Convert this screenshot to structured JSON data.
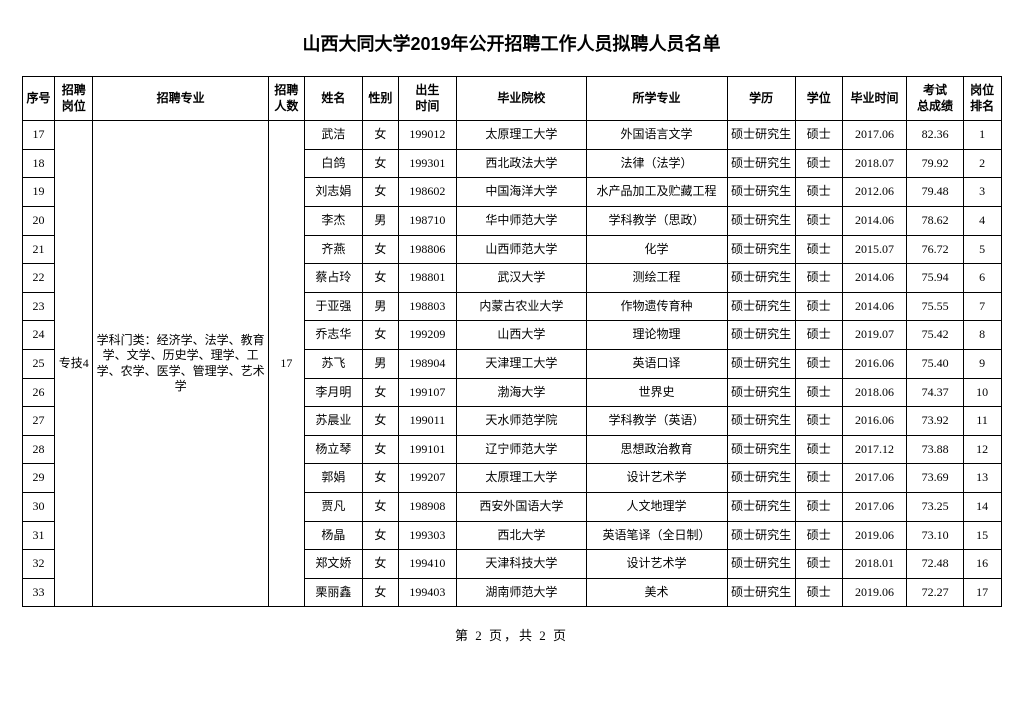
{
  "title": "山西大同大学2019年公开招聘工作人员拟聘人员名单",
  "footer": "第 2 页，共 2 页",
  "headers": {
    "seq": "序号",
    "position": "招聘\n岗位",
    "major": "招聘专业",
    "count": "招聘\n人数",
    "name": "姓名",
    "gender": "性别",
    "birth": "出生\n时间",
    "school": "毕业院校",
    "study": "所学专业",
    "edu": "学历",
    "degree": "学位",
    "gradtime": "毕业时间",
    "score": "考试\n总成绩",
    "rank": "岗位\n排名"
  },
  "position": "专技4",
  "majorDesc": "学科门类：经济学、法学、教育学、文学、历史学、理学、工学、农学、医学、管理学、艺术学",
  "count": "17",
  "rows": [
    {
      "seq": "17",
      "name": "武洁",
      "gender": "女",
      "birth": "199012",
      "school": "太原理工大学",
      "study": "外国语言文学",
      "edu": "硕士研究生",
      "degree": "硕士",
      "gradtime": "2017.06",
      "score": "82.36",
      "rank": "1"
    },
    {
      "seq": "18",
      "name": "白鸽",
      "gender": "女",
      "birth": "199301",
      "school": "西北政法大学",
      "study": "法律（法学）",
      "edu": "硕士研究生",
      "degree": "硕士",
      "gradtime": "2018.07",
      "score": "79.92",
      "rank": "2"
    },
    {
      "seq": "19",
      "name": "刘志娟",
      "gender": "女",
      "birth": "198602",
      "school": "中国海洋大学",
      "study": "水产品加工及贮藏工程",
      "edu": "硕士研究生",
      "degree": "硕士",
      "gradtime": "2012.06",
      "score": "79.48",
      "rank": "3"
    },
    {
      "seq": "20",
      "name": "李杰",
      "gender": "男",
      "birth": "198710",
      "school": "华中师范大学",
      "study": "学科教学（思政）",
      "edu": "硕士研究生",
      "degree": "硕士",
      "gradtime": "2014.06",
      "score": "78.62",
      "rank": "4"
    },
    {
      "seq": "21",
      "name": "齐燕",
      "gender": "女",
      "birth": "198806",
      "school": "山西师范大学",
      "study": "化学",
      "edu": "硕士研究生",
      "degree": "硕士",
      "gradtime": "2015.07",
      "score": "76.72",
      "rank": "5"
    },
    {
      "seq": "22",
      "name": "蔡占玲",
      "gender": "女",
      "birth": "198801",
      "school": "武汉大学",
      "study": "测绘工程",
      "edu": "硕士研究生",
      "degree": "硕士",
      "gradtime": "2014.06",
      "score": "75.94",
      "rank": "6"
    },
    {
      "seq": "23",
      "name": "于亚强",
      "gender": "男",
      "birth": "198803",
      "school": "内蒙古农业大学",
      "study": "作物遗传育种",
      "edu": "硕士研究生",
      "degree": "硕士",
      "gradtime": "2014.06",
      "score": "75.55",
      "rank": "7"
    },
    {
      "seq": "24",
      "name": "乔志华",
      "gender": "女",
      "birth": "199209",
      "school": "山西大学",
      "study": "理论物理",
      "edu": "硕士研究生",
      "degree": "硕士",
      "gradtime": "2019.07",
      "score": "75.42",
      "rank": "8"
    },
    {
      "seq": "25",
      "name": "苏飞",
      "gender": "男",
      "birth": "198904",
      "school": "天津理工大学",
      "study": "英语口译",
      "edu": "硕士研究生",
      "degree": "硕士",
      "gradtime": "2016.06",
      "score": "75.40",
      "rank": "9"
    },
    {
      "seq": "26",
      "name": "李月明",
      "gender": "女",
      "birth": "199107",
      "school": "渤海大学",
      "study": "世界史",
      "edu": "硕士研究生",
      "degree": "硕士",
      "gradtime": "2018.06",
      "score": "74.37",
      "rank": "10"
    },
    {
      "seq": "27",
      "name": "苏晨业",
      "gender": "女",
      "birth": "199011",
      "school": "天水师范学院",
      "study": "学科教学（英语）",
      "edu": "硕士研究生",
      "degree": "硕士",
      "gradtime": "2016.06",
      "score": "73.92",
      "rank": "11"
    },
    {
      "seq": "28",
      "name": "杨立琴",
      "gender": "女",
      "birth": "199101",
      "school": "辽宁师范大学",
      "study": "思想政治教育",
      "edu": "硕士研究生",
      "degree": "硕士",
      "gradtime": "2017.12",
      "score": "73.88",
      "rank": "12"
    },
    {
      "seq": "29",
      "name": "郭娟",
      "gender": "女",
      "birth": "199207",
      "school": "太原理工大学",
      "study": "设计艺术学",
      "edu": "硕士研究生",
      "degree": "硕士",
      "gradtime": "2017.06",
      "score": "73.69",
      "rank": "13"
    },
    {
      "seq": "30",
      "name": "贾凡",
      "gender": "女",
      "birth": "198908",
      "school": "西安外国语大学",
      "study": "人文地理学",
      "edu": "硕士研究生",
      "degree": "硕士",
      "gradtime": "2017.06",
      "score": "73.25",
      "rank": "14"
    },
    {
      "seq": "31",
      "name": "杨晶",
      "gender": "女",
      "birth": "199303",
      "school": "西北大学",
      "study": "英语笔译（全日制）",
      "edu": "硕士研究生",
      "degree": "硕士",
      "gradtime": "2019.06",
      "score": "73.10",
      "rank": "15"
    },
    {
      "seq": "32",
      "name": "郑文娇",
      "gender": "女",
      "birth": "199410",
      "school": "天津科技大学",
      "study": "设计艺术学",
      "edu": "硕士研究生",
      "degree": "硕士",
      "gradtime": "2018.01",
      "score": "72.48",
      "rank": "16"
    },
    {
      "seq": "33",
      "name": "栗丽鑫",
      "gender": "女",
      "birth": "199403",
      "school": "湖南师范大学",
      "study": "美术",
      "edu": "硕士研究生",
      "degree": "硕士",
      "gradtime": "2019.06",
      "score": "72.27",
      "rank": "17"
    }
  ]
}
